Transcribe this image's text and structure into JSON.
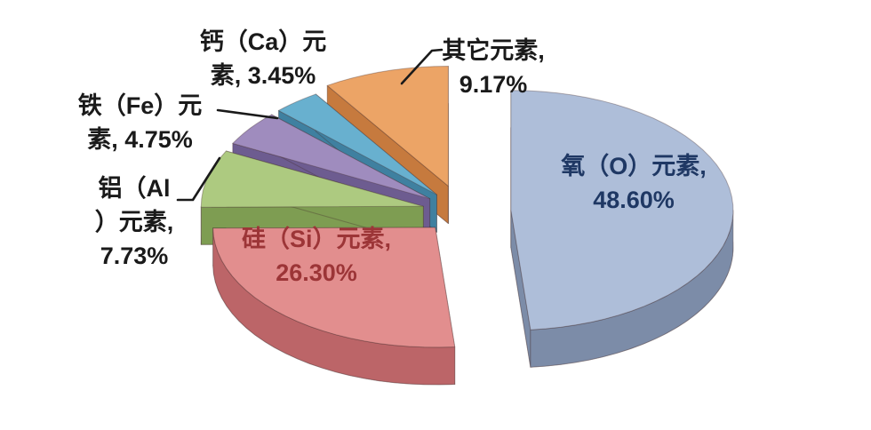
{
  "chart_data": {
    "type": "pie",
    "style": "3d-exploded",
    "title": "",
    "unit": "%",
    "direction": "clockwise",
    "start_angle_deg": 0,
    "background": "#FFFFFF",
    "legend": "none",
    "leader_line_color": "#1A1A1A",
    "slices": [
      {
        "id": "oxygen",
        "name": "氧（O）元素",
        "value": 48.6,
        "color": "#AEBED9",
        "side_color": "#7C8CA8",
        "label_lines": [
          "氧（O）元素,",
          "48.60%"
        ],
        "label_color": "#1F3864",
        "label_placement": "inside"
      },
      {
        "id": "silicon",
        "name": "硅（Si）元素",
        "value": 26.3,
        "color": "#E28E8E",
        "side_color": "#BC6568",
        "label_lines": [
          "硅（Si）元素,",
          "26.30%"
        ],
        "label_color": "#9C3537",
        "label_placement": "inside"
      },
      {
        "id": "aluminum",
        "name": "铝（Al）元素",
        "value": 7.73,
        "color": "#ADCA80",
        "side_color": "#7E9D52",
        "label_lines": [
          "铝（Al",
          "）元素,",
          "7.73%"
        ],
        "label_color": "#1A1A1A",
        "label_placement": "outside"
      },
      {
        "id": "iron",
        "name": "铁（Fe）元素",
        "value": 4.75,
        "color": "#9F8CBE",
        "side_color": "#6D5C90",
        "label_lines": [
          "铁（Fe）元",
          "素, 4.75%"
        ],
        "label_color": "#1A1A1A",
        "label_placement": "outside"
      },
      {
        "id": "calcium",
        "name": "钙（Ca）元素",
        "value": 3.45,
        "color": "#68B0CF",
        "side_color": "#3F80A0",
        "label_lines": [
          "钙（Ca）元",
          "素, 3.45%"
        ],
        "label_color": "#1A1A1A",
        "label_placement": "outside"
      },
      {
        "id": "other",
        "name": "其它元素",
        "value": 9.17,
        "color": "#ECA466",
        "side_color": "#C67A3E",
        "label_lines": [
          "其它元素,",
          "9.17%"
        ],
        "label_color": "#1A1A1A",
        "label_placement": "outside"
      }
    ]
  }
}
